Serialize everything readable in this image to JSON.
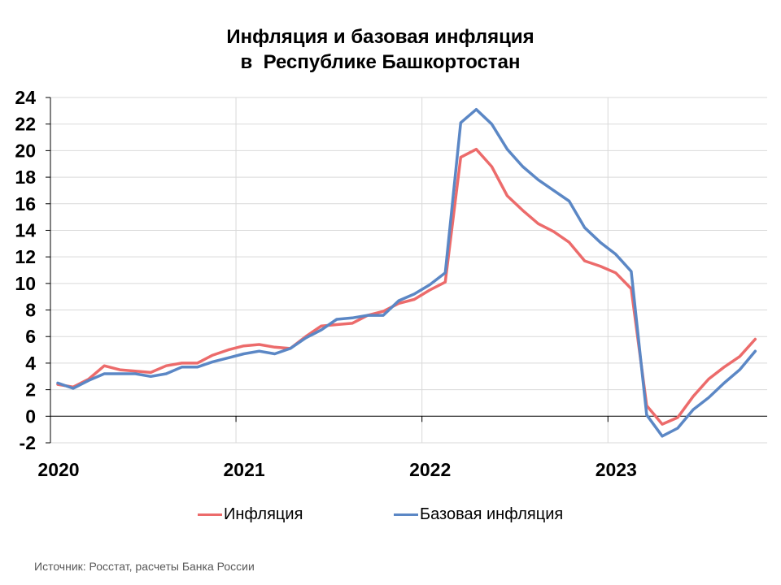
{
  "title_line1": "Инфляция и базовая инфляция",
  "title_line2": "в  Республике Башкортостан",
  "source": "Источник: Росстат, расчеты Банка России",
  "colors": {
    "inflation": "#ec6b6b",
    "core_inflation": "#5b87c5",
    "grid": "#d9d9d9",
    "axis": "#000000"
  },
  "chart_data": {
    "type": "line",
    "x": [
      "2020-01",
      "2020-02",
      "2020-03",
      "2020-04",
      "2020-05",
      "2020-06",
      "2020-07",
      "2020-08",
      "2020-09",
      "2020-10",
      "2020-11",
      "2020-12",
      "2021-01",
      "2021-02",
      "2021-03",
      "2021-04",
      "2021-05",
      "2021-06",
      "2021-07",
      "2021-08",
      "2021-09",
      "2021-10",
      "2021-11",
      "2021-12",
      "2022-01",
      "2022-02",
      "2022-03",
      "2022-04",
      "2022-05",
      "2022-06",
      "2022-07",
      "2022-08",
      "2022-09",
      "2022-10",
      "2022-11",
      "2022-12",
      "2023-01",
      "2023-02",
      "2023-03",
      "2023-04",
      "2023-05",
      "2023-06",
      "2023-07",
      "2023-08",
      "2023-09",
      "2023-10"
    ],
    "x_tick_labels": [
      "2020",
      "2021",
      "2022",
      "2023"
    ],
    "ylim": [
      -2,
      24
    ],
    "y_ticks": [
      -2,
      0,
      2,
      4,
      6,
      8,
      10,
      12,
      14,
      16,
      18,
      20,
      22,
      24
    ],
    "grid": true,
    "legend_position": "bottom",
    "series": [
      {
        "name": "Инфляция",
        "values": [
          2.4,
          2.2,
          2.8,
          3.8,
          3.5,
          3.4,
          3.3,
          3.8,
          4.0,
          4.0,
          4.6,
          5.0,
          5.3,
          5.4,
          5.2,
          5.1,
          6.0,
          6.8,
          6.9,
          7.0,
          7.6,
          7.9,
          8.5,
          8.8,
          9.5,
          10.1,
          19.5,
          20.1,
          18.8,
          16.6,
          15.5,
          14.5,
          13.9,
          13.1,
          11.7,
          11.3,
          10.8,
          9.6,
          0.8,
          -0.6,
          -0.1,
          1.5,
          2.8,
          3.7,
          4.5,
          5.8
        ]
      },
      {
        "name": "Базовая инфляция",
        "values": [
          2.5,
          2.1,
          2.7,
          3.2,
          3.2,
          3.2,
          3.0,
          3.2,
          3.7,
          3.7,
          4.1,
          4.4,
          4.7,
          4.9,
          4.7,
          5.1,
          5.9,
          6.5,
          7.3,
          7.4,
          7.6,
          7.6,
          8.7,
          9.2,
          9.9,
          10.8,
          22.1,
          23.1,
          22.0,
          20.1,
          18.8,
          17.8,
          17.0,
          16.2,
          14.2,
          13.1,
          12.2,
          10.9,
          0.1,
          -1.5,
          -0.9,
          0.5,
          1.4,
          2.5,
          3.5,
          4.9
        ]
      }
    ]
  }
}
